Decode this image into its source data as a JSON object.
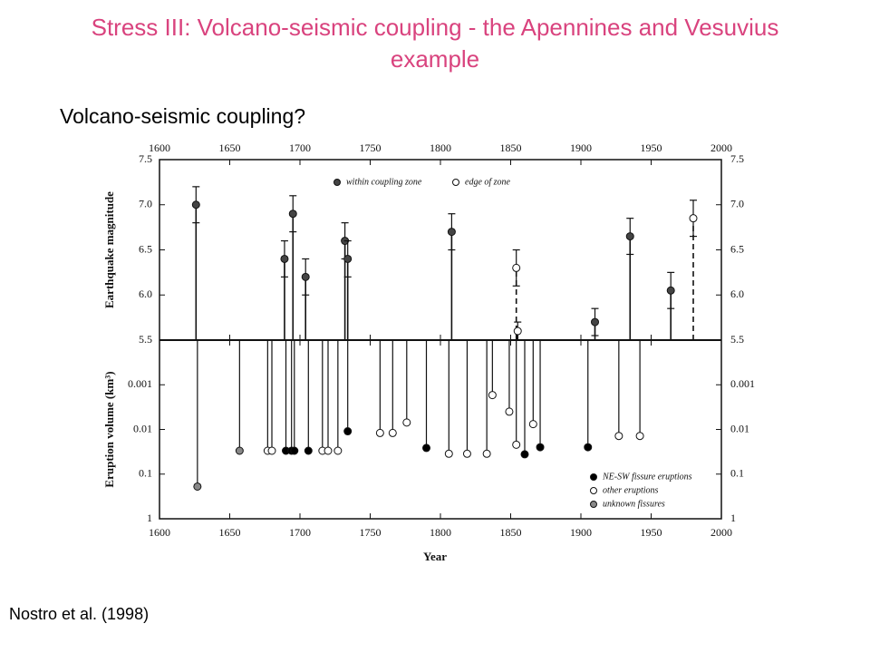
{
  "title": "Stress III: Volcano-seismic coupling - the Apennines and Vesuvius example",
  "heading": "Volcano-seismic coupling?",
  "citation": "Nostro et al. (1998)",
  "chart_data": [
    {
      "type": "scatter",
      "y_label": "Earthquake magnitude",
      "xlim": [
        1600,
        2000
      ],
      "xticks": [
        1600,
        1650,
        1700,
        1750,
        1800,
        1850,
        1900,
        1950,
        2000
      ],
      "ylim": [
        5.5,
        7.5
      ],
      "yticks": [
        5.5,
        {
          "value": 6,
          "label": "6.0"
        },
        6.5,
        {
          "value": 7,
          "label": "7.0"
        },
        7.5
      ],
      "series": [
        {
          "name": "within coupling zone",
          "color": "#444444",
          "line": "solid",
          "x": [
            1626,
            1689,
            1695,
            1704,
            1732,
            1734,
            1808,
            1910,
            1935,
            1964
          ],
          "values": [
            7.0,
            6.4,
            6.9,
            6.2,
            6.6,
            6.4,
            6.7,
            5.7,
            6.65,
            6.05
          ],
          "errors": [
            0.2,
            0.2,
            0.2,
            0.2,
            0.2,
            0.2,
            0.2,
            0.15,
            0.2,
            0.2
          ]
        },
        {
          "name": "edge of zone",
          "color": "#ffffff",
          "line": "dashed",
          "x": [
            1854,
            1855,
            1980
          ],
          "values": [
            6.3,
            5.6,
            6.85
          ],
          "errors": [
            0.2,
            0.1,
            0.2
          ]
        }
      ]
    },
    {
      "type": "scatter",
      "y_label": "Eruption volume (km³)",
      "x_label": "Year",
      "log_y": true,
      "xlim": [
        1600,
        2000
      ],
      "xticks": [
        1600,
        1650,
        1700,
        1750,
        1800,
        1850,
        1900,
        1950,
        2000
      ],
      "ylim": [
        1,
        0.0001
      ],
      "yticks": [
        0.001,
        0.01,
        0.1,
        1
      ],
      "series": [
        {
          "name": "NE-SW fissure eruptions",
          "color": "#000000",
          "x": [
            1690,
            1694,
            1696,
            1706,
            1734,
            1790,
            1860,
            1871,
            1905
          ],
          "values": [
            0.03,
            0.03,
            0.03,
            0.03,
            0.011,
            0.026,
            0.036,
            0.025,
            0.025
          ]
        },
        {
          "name": "other eruptions",
          "color": "#ffffff",
          "x": [
            1677,
            1680,
            1716,
            1720,
            1727,
            1757,
            1766,
            1776,
            1806,
            1819,
            1833,
            1837,
            1849,
            1854,
            1866,
            1927,
            1942
          ],
          "values": [
            0.03,
            0.03,
            0.03,
            0.03,
            0.03,
            0.012,
            0.012,
            0.007,
            0.035,
            0.035,
            0.035,
            0.0017,
            0.004,
            0.022,
            0.0076,
            0.014,
            0.014
          ]
        },
        {
          "name": "unknown fissures",
          "color": "#888888",
          "x": [
            1627,
            1657
          ],
          "values": [
            0.19,
            0.03
          ]
        }
      ]
    }
  ]
}
